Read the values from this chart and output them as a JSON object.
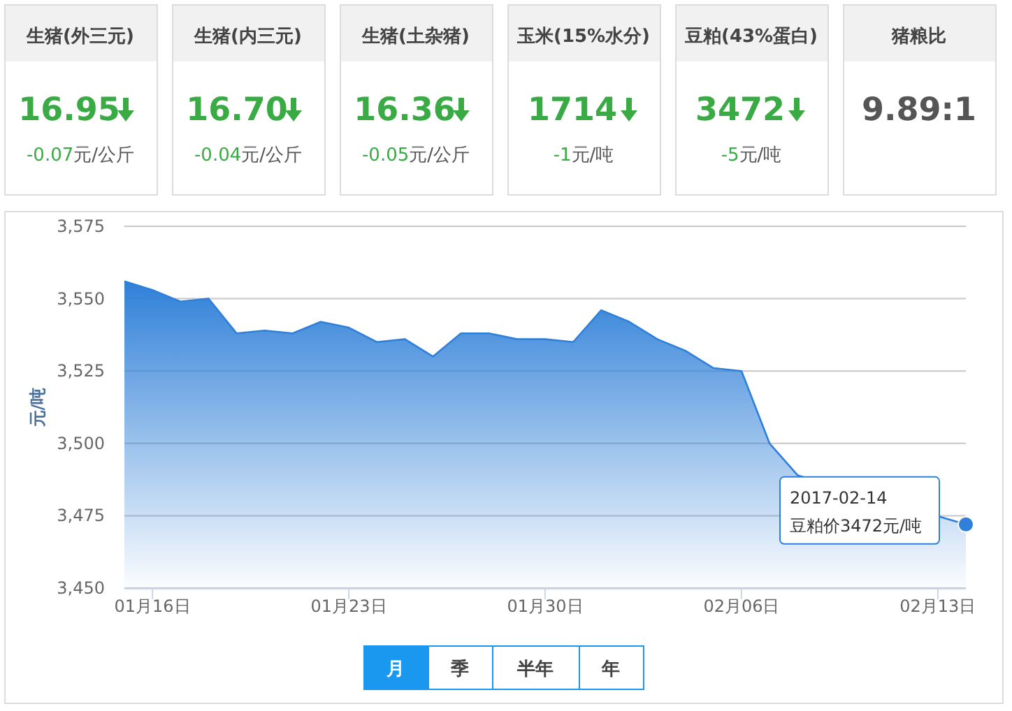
{
  "chart_data": [
    {
      "type": "other",
      "title": "生猪(外三元)",
      "annotations": [
        "16.95",
        "-0.07元/公斤"
      ]
    },
    {
      "type": "other",
      "title": "生猪(内三元)",
      "annotations": [
        "16.70",
        "-0.04元/公斤"
      ]
    },
    {
      "type": "other",
      "title": "生猪(土杂猪)",
      "annotations": [
        "16.36",
        "-0.05元/公斤"
      ]
    },
    {
      "type": "other",
      "title": "玉米(15%水分)",
      "annotations": [
        "1714",
        "-1元/吨"
      ]
    },
    {
      "type": "other",
      "title": "豆粕(43%蛋白)",
      "annotations": [
        "3472",
        "-5元/吨"
      ]
    },
    {
      "type": "other",
      "title": "猪粮比",
      "annotations": [
        "9.89:1"
      ]
    },
    {
      "type": "area",
      "ylabel": "元/吨",
      "color": "#2f80d8",
      "x": [
        "2017-01-15",
        "2017-01-16",
        "2017-01-17",
        "2017-01-18",
        "2017-01-19",
        "2017-01-20",
        "2017-01-21",
        "2017-01-22",
        "2017-01-23",
        "2017-01-24",
        "2017-01-25",
        "2017-01-26",
        "2017-01-27",
        "2017-01-28",
        "2017-01-29",
        "2017-01-30",
        "2017-01-31",
        "2017-02-01",
        "2017-02-02",
        "2017-02-03",
        "2017-02-04",
        "2017-02-05",
        "2017-02-06",
        "2017-02-07",
        "2017-02-08",
        "2017-02-14"
      ],
      "values": [
        3556,
        3553,
        3549,
        3550,
        3538,
        3539,
        3538,
        3542,
        3540,
        3535,
        3536,
        3530,
        3538,
        3538,
        3536,
        3536,
        3535,
        3546,
        3542,
        3536,
        3532,
        3526,
        3525,
        3500,
        3489,
        3472
      ],
      "xlim": [
        "2017-01-15",
        "2017-02-14"
      ],
      "xticks": [
        {
          "value": "2017-01-16",
          "label": "01月16日"
        },
        {
          "value": "2017-01-23",
          "label": "01月23日"
        },
        {
          "value": "2017-01-30",
          "label": "01月30日"
        },
        {
          "value": "2017-02-06",
          "label": "02月06日"
        },
        {
          "value": "2017-02-13",
          "label": "02月13日"
        }
      ],
      "ylim": [
        3450,
        3575
      ],
      "yticks": [
        {
          "value": 3450,
          "label": "3,450"
        },
        {
          "value": 3475,
          "label": "3,475"
        },
        {
          "value": 3500,
          "label": "3,500"
        },
        {
          "value": 3525,
          "label": "3,525"
        },
        {
          "value": 3550,
          "label": "3,550"
        },
        {
          "value": 3575,
          "label": "3,575"
        }
      ],
      "grid": "y",
      "annotations": [
        {
          "text": "2017-02-14\n豆粕价3472元/吨",
          "x": "2017-02-14",
          "y": 3472
        },
        "月",
        "季",
        "半年",
        "年"
      ]
    }
  ]
}
